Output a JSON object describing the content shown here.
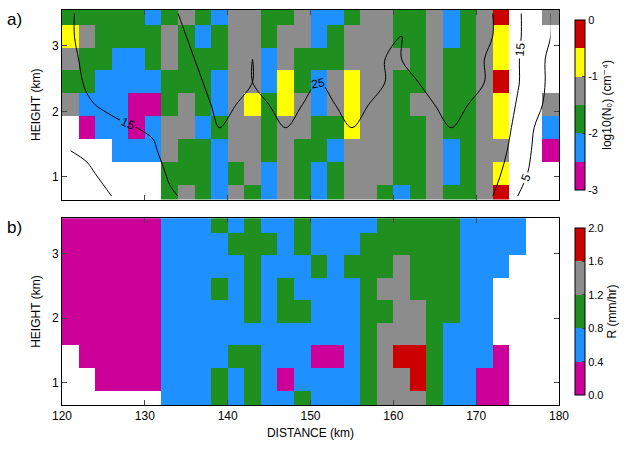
{
  "chart_data": [
    {
      "type": "heatmap",
      "panel_label": "a)",
      "y_label": "HEIGHT (km)",
      "tick_labels": "y",
      "xlim": [
        120,
        180
      ],
      "xticks": [
        120,
        130,
        140,
        150,
        160,
        170,
        180
      ],
      "ylim": [
        0.65,
        3.55
      ],
      "yticks": [
        1,
        2,
        3
      ],
      "x": [
        121,
        123,
        125,
        127,
        129,
        131,
        133,
        135,
        137,
        139,
        141,
        143,
        145,
        147,
        149,
        151,
        153,
        155,
        157,
        159,
        161,
        163,
        165,
        167,
        169,
        171,
        173,
        175,
        177,
        179
      ],
      "y": [
        0.7,
        1.05,
        1.4,
        1.75,
        2.1,
        2.45,
        2.8,
        3.15,
        3.5
      ],
      "cells": [
        [
          null,
          null,
          null,
          null,
          -1.2,
          -1.8,
          -1.2,
          -0.8,
          -1.7
        ],
        [
          null,
          null,
          null,
          -2.7,
          -2.2,
          -1.7,
          -1.7,
          -1.2,
          -1.7
        ],
        [
          null,
          null,
          null,
          -2.2,
          -2.2,
          -2.2,
          -1.7,
          -1.7,
          -1.7
        ],
        [
          null,
          null,
          -2.2,
          -2.2,
          -2.2,
          -2.2,
          -2.2,
          -1.7,
          -1.7
        ],
        [
          null,
          null,
          -2.2,
          -2.7,
          -2.7,
          -2.2,
          -2.2,
          -1.7,
          -1.7
        ],
        [
          null,
          null,
          -2.2,
          -2.2,
          -2.7,
          -2.2,
          -1.7,
          -1.7,
          -2.2
        ],
        [
          -1.7,
          -1.7,
          -1.2,
          -1.2,
          -1.7,
          -1.7,
          -1.2,
          -1.2,
          -1.7
        ],
        [
          -1.2,
          -1.7,
          -1.7,
          -1.2,
          -1.2,
          -1.7,
          -1.7,
          -1.7,
          -1.2
        ],
        [
          -1.7,
          -1.7,
          -1.7,
          -2.2,
          -1.7,
          -1.7,
          -1.7,
          -2.2,
          -1.7
        ],
        [
          -2.2,
          -2.2,
          -2.2,
          -1.7,
          -2.2,
          -2.2,
          -1.7,
          -1.7,
          -2.2
        ],
        [
          -1.2,
          -1.7,
          -1.2,
          -1.2,
          -1.2,
          -1.2,
          -1.2,
          -1.2,
          -1.2
        ],
        [
          -1.7,
          -1.2,
          -1.2,
          -1.2,
          -0.8,
          -1.2,
          -1.2,
          -1.2,
          -1.2
        ],
        [
          -2.2,
          -2.2,
          -1.7,
          -1.7,
          -1.7,
          -2.2,
          -2.2,
          -1.7,
          -1.7
        ],
        [
          -1.2,
          -1.2,
          -1.2,
          -1.2,
          -0.8,
          -0.8,
          -1.2,
          -1.2,
          -1.7
        ],
        [
          -1.7,
          -1.7,
          -1.7,
          -1.2,
          -1.2,
          -1.7,
          -1.7,
          -1.2,
          -1.2
        ],
        [
          -2.2,
          -2.2,
          -1.7,
          -1.7,
          -2.2,
          -2.2,
          -1.7,
          -2.2,
          -2.2
        ],
        [
          -1.7,
          -1.7,
          -2.2,
          -1.7,
          -1.2,
          -1.2,
          -1.7,
          -1.7,
          -2.2
        ],
        [
          -1.2,
          -1.2,
          -1.2,
          -0.8,
          -0.8,
          -0.8,
          -1.2,
          -1.2,
          -1.7
        ],
        [
          -1.2,
          -1.2,
          -1.2,
          -1.2,
          -1.2,
          -1.2,
          -1.2,
          -1.2,
          -1.2
        ],
        [
          -1.7,
          -1.2,
          -1.2,
          -1.2,
          -1.2,
          -1.2,
          -1.2,
          -1.2,
          -1.2
        ],
        [
          -2.2,
          -1.7,
          -1.7,
          -1.7,
          -1.7,
          -1.7,
          -1.2,
          -1.7,
          -1.7
        ],
        [
          -1.7,
          -1.7,
          -1.7,
          -1.7,
          -1.2,
          -1.7,
          -1.7,
          -1.7,
          -1.7
        ],
        [
          -1.2,
          -1.2,
          -1.2,
          -1.2,
          -1.2,
          -1.2,
          -1.2,
          -1.2,
          -1.2
        ],
        [
          -1.7,
          -2.2,
          -2.2,
          -1.7,
          -1.7,
          -1.7,
          -1.7,
          -2.2,
          -2.2
        ],
        [
          -1.7,
          -1.7,
          -1.7,
          -1.7,
          -1.7,
          -1.7,
          -1.7,
          -1.7,
          -1.7
        ],
        [
          -1.2,
          -1.2,
          -1.2,
          -1.2,
          -1.2,
          -1.2,
          -1.2,
          -1.2,
          -1.2
        ],
        [
          -0.3,
          -0.8,
          -1.2,
          -0.8,
          -0.8,
          -0.3,
          -0.8,
          -0.8,
          -0.3
        ],
        [
          null,
          null,
          null,
          null,
          null,
          null,
          null,
          null,
          null
        ],
        [
          null,
          null,
          null,
          null,
          null,
          null,
          null,
          null,
          null
        ],
        [
          null,
          null,
          -2.7,
          -2.2,
          -1.2,
          null,
          null,
          null,
          -1.2
        ]
      ],
      "colorbar": {
        "title": "log10(N₀) (cm⁻⁴)",
        "range": [
          -3,
          0
        ],
        "ticks": [
          0,
          -1,
          -2,
          -3
        ],
        "colors": [
          "#cc0099",
          "#1e90ff",
          "#1f8f1f",
          "#8c8c8c",
          "#ffff00",
          "#cc0000"
        ]
      },
      "contours": {
        "levels": [
          5,
          15,
          25
        ],
        "color": "#000000",
        "cells": [
          [
            3,
            4,
            5,
            8,
            10,
            12,
            13,
            14,
            14
          ],
          [
            3,
            4,
            6,
            10,
            14,
            16,
            17,
            18,
            18
          ],
          [
            4,
            6,
            8,
            12,
            16,
            18,
            19,
            20,
            20
          ],
          [
            6,
            8,
            10,
            14,
            17,
            19,
            20,
            21,
            21
          ],
          [
            8,
            10,
            12,
            15,
            17,
            19,
            20,
            21,
            22
          ],
          [
            10,
            12,
            14,
            16,
            18,
            20,
            21,
            22,
            22
          ],
          [
            14,
            16,
            18,
            20,
            21,
            22,
            23,
            23,
            24
          ],
          [
            16,
            18,
            20,
            22,
            23,
            24,
            24,
            25,
            26
          ],
          [
            18,
            20,
            22,
            23,
            24,
            25,
            26,
            27,
            27
          ],
          [
            20,
            22,
            24,
            25,
            26,
            27,
            27,
            28,
            28
          ],
          [
            20,
            22,
            23,
            24,
            25,
            26,
            26,
            27,
            27
          ],
          [
            20,
            21,
            22,
            23,
            24,
            25,
            25,
            26,
            26
          ],
          [
            20,
            22,
            23,
            24,
            25,
            26,
            26,
            27,
            28
          ],
          [
            21,
            22,
            24,
            25,
            26,
            27,
            28,
            28,
            29
          ],
          [
            20,
            22,
            23,
            24,
            25,
            26,
            27,
            27,
            28
          ],
          [
            20,
            21,
            22,
            23,
            24,
            25,
            26,
            26,
            27
          ],
          [
            21,
            22,
            23,
            24,
            25,
            26,
            27,
            27,
            27
          ],
          [
            22,
            23,
            24,
            25,
            26,
            27,
            27,
            28,
            28
          ],
          [
            21,
            22,
            23,
            24,
            25,
            26,
            26,
            27,
            27
          ],
          [
            20,
            21,
            22,
            23,
            24,
            25,
            25,
            26,
            26
          ],
          [
            20,
            21,
            22,
            23,
            24,
            24,
            25,
            25,
            26
          ],
          [
            20,
            21,
            22,
            23,
            24,
            25,
            26,
            26,
            26
          ],
          [
            21,
            22,
            23,
            24,
            25,
            26,
            27,
            27,
            27
          ],
          [
            22,
            23,
            24,
            25,
            26,
            27,
            27,
            28,
            28
          ],
          [
            21,
            22,
            23,
            24,
            25,
            26,
            26,
            27,
            27
          ],
          [
            18,
            20,
            22,
            23,
            24,
            25,
            25,
            26,
            26
          ],
          [
            12,
            15,
            18,
            20,
            22,
            23,
            23,
            24,
            24
          ],
          [
            5,
            8,
            10,
            12,
            14,
            16,
            16,
            17,
            17
          ],
          [
            2,
            3,
            4,
            5,
            6,
            7,
            7,
            8,
            8
          ],
          [
            1,
            2,
            3,
            3,
            4,
            4,
            4,
            5,
            5
          ]
        ]
      }
    },
    {
      "type": "heatmap",
      "panel_label": "b)",
      "y_label": "HEIGHT (km)",
      "x_label": "DISTANCE (km)",
      "xlim": [
        120,
        180
      ],
      "xticks": [
        120,
        130,
        140,
        150,
        160,
        170,
        180
      ],
      "ylim": [
        0.65,
        3.55
      ],
      "yticks": [
        1,
        2,
        3
      ],
      "x": [
        121,
        123,
        125,
        127,
        129,
        131,
        133,
        135,
        137,
        139,
        141,
        143,
        145,
        147,
        149,
        151,
        153,
        155,
        157,
        159,
        161,
        163,
        165,
        167,
        169,
        171,
        173,
        175,
        177,
        179
      ],
      "y": [
        0.7,
        1.05,
        1.4,
        1.75,
        2.1,
        2.45,
        2.8,
        3.15,
        3.5
      ],
      "cells": [
        [
          null,
          null,
          null,
          0.2,
          0.2,
          0.2,
          0.2,
          0.2,
          0.2
        ],
        [
          null,
          null,
          0.2,
          0.2,
          0.2,
          0.2,
          0.2,
          0.2,
          0.2
        ],
        [
          null,
          0.2,
          0.2,
          0.2,
          0.2,
          0.2,
          0.2,
          0.2,
          0.2
        ],
        [
          null,
          0.2,
          0.2,
          0.2,
          0.2,
          0.2,
          0.2,
          0.2,
          0.2
        ],
        [
          null,
          0.2,
          0.2,
          0.2,
          0.2,
          0.2,
          0.2,
          0.2,
          0.2
        ],
        [
          null,
          0.2,
          0.2,
          0.2,
          0.2,
          0.2,
          0.2,
          0.2,
          0.2
        ],
        [
          0.6,
          0.6,
          0.6,
          0.6,
          0.6,
          0.6,
          0.6,
          0.6,
          0.6
        ],
        [
          0.6,
          0.6,
          0.6,
          0.6,
          0.6,
          0.6,
          0.6,
          0.6,
          0.6
        ],
        [
          0.6,
          0.6,
          0.6,
          0.6,
          0.6,
          0.6,
          0.6,
          0.6,
          0.6
        ],
        [
          1.0,
          1.0,
          0.6,
          0.6,
          0.6,
          1.0,
          0.6,
          0.6,
          1.0
        ],
        [
          0.6,
          0.6,
          1.0,
          0.6,
          0.6,
          0.6,
          0.6,
          1.0,
          0.6
        ],
        [
          1.0,
          1.0,
          1.0,
          0.6,
          1.0,
          1.0,
          1.0,
          1.0,
          1.0
        ],
        [
          0.6,
          0.6,
          0.6,
          0.6,
          0.6,
          0.6,
          0.6,
          1.0,
          0.6
        ],
        [
          0.6,
          0.2,
          0.6,
          0.6,
          1.0,
          1.0,
          0.6,
          0.6,
          0.6
        ],
        [
          1.0,
          0.6,
          0.6,
          0.6,
          1.0,
          0.6,
          0.6,
          1.0,
          1.0
        ],
        [
          0.6,
          0.6,
          0.2,
          0.6,
          0.6,
          0.6,
          1.0,
          0.6,
          0.6
        ],
        [
          0.6,
          0.6,
          0.2,
          0.6,
          0.6,
          0.6,
          0.6,
          0.6,
          0.6
        ],
        [
          0.6,
          0.6,
          0.6,
          0.6,
          0.6,
          0.6,
          1.0,
          0.6,
          0.6
        ],
        [
          1.0,
          1.0,
          1.0,
          1.0,
          1.0,
          1.0,
          1.0,
          1.0,
          0.6
        ],
        [
          1.4,
          1.4,
          1.4,
          1.4,
          1.0,
          1.4,
          1.0,
          1.0,
          1.0
        ],
        [
          1.4,
          1.4,
          1.8,
          1.4,
          1.4,
          1.4,
          1.4,
          1.0,
          1.0
        ],
        [
          1.4,
          1.8,
          1.8,
          1.4,
          1.4,
          1.0,
          1.0,
          1.0,
          1.0
        ],
        [
          1.0,
          1.0,
          1.0,
          1.0,
          1.0,
          1.0,
          1.0,
          1.0,
          1.0
        ],
        [
          0.6,
          0.6,
          0.6,
          0.6,
          1.0,
          1.0,
          1.0,
          1.0,
          1.0
        ],
        [
          0.6,
          0.6,
          0.6,
          0.6,
          0.6,
          0.6,
          0.6,
          0.6,
          0.6
        ],
        [
          0.2,
          0.2,
          0.6,
          0.6,
          0.6,
          0.6,
          0.6,
          0.6,
          0.6
        ],
        [
          0.2,
          0.2,
          0.2,
          null,
          null,
          null,
          0.6,
          0.6,
          0.6
        ],
        [
          null,
          null,
          null,
          null,
          null,
          null,
          null,
          0.6,
          0.6
        ],
        [
          null,
          null,
          null,
          null,
          null,
          null,
          null,
          null,
          null
        ],
        [
          null,
          null,
          null,
          null,
          null,
          null,
          null,
          null,
          null
        ]
      ],
      "colorbar": {
        "title": "R (mm/hr)",
        "range": [
          0,
          2
        ],
        "ticks": [
          {
            "value": 0,
            "label": "0.0"
          },
          {
            "value": 0.4,
            "label": "0.4"
          },
          {
            "value": 0.8,
            "label": "0.8"
          },
          {
            "value": 1.2,
            "label": "1.2"
          },
          {
            "value": 1.6,
            "label": "1.6"
          },
          {
            "value": 2,
            "label": "2.0"
          }
        ],
        "colors": [
          "#cc0099",
          "#1e90ff",
          "#1f8f1f",
          "#8c8c8c",
          "#cc0000"
        ]
      }
    }
  ]
}
